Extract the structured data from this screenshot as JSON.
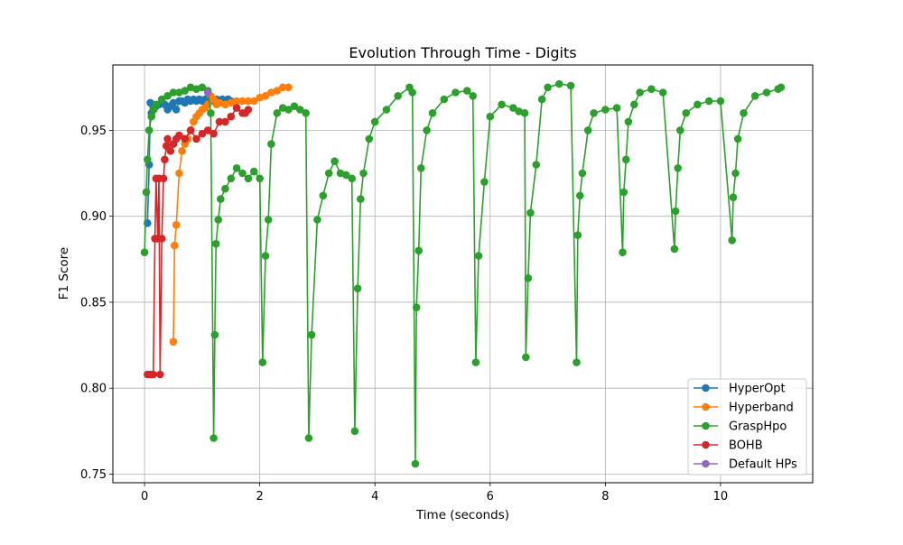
{
  "chart_data": {
    "type": "line",
    "title": "Evolution Through Time - Digits",
    "xlabel": "Time (seconds)",
    "ylabel": "F1 Score",
    "xlim": [
      -0.55,
      11.6
    ],
    "ylim": [
      0.745,
      0.988
    ],
    "xticks": [
      0,
      2,
      4,
      6,
      8,
      10
    ],
    "xtick_labels": [
      "0",
      "2",
      "4",
      "6",
      "8",
      "10"
    ],
    "yticks": [
      0.75,
      0.8,
      0.85,
      0.9,
      0.95
    ],
    "ytick_labels": [
      "0.75",
      "0.80",
      "0.85",
      "0.90",
      "0.95"
    ],
    "grid": true,
    "legend_position": "lower-right",
    "series": [
      {
        "name": "HyperOpt",
        "color": "#1f77b4",
        "x": [
          0.05,
          0.08,
          0.1,
          0.12,
          0.15,
          0.2,
          0.25,
          0.3,
          0.35,
          0.4,
          0.45,
          0.5,
          0.55,
          0.6,
          0.65,
          0.7,
          0.75,
          0.8,
          0.85,
          0.9,
          0.95,
          1.0,
          1.05,
          1.1,
          1.15,
          1.2,
          1.25,
          1.3,
          1.35,
          1.4,
          1.45,
          1.5
        ],
        "y": [
          0.896,
          0.93,
          0.966,
          0.96,
          0.962,
          0.964,
          0.965,
          0.966,
          0.965,
          0.962,
          0.964,
          0.966,
          0.962,
          0.967,
          0.967,
          0.966,
          0.968,
          0.967,
          0.968,
          0.967,
          0.968,
          0.967,
          0.968,
          0.967,
          0.968,
          0.967,
          0.968,
          0.967,
          0.968,
          0.967,
          0.968,
          0.967
        ]
      },
      {
        "name": "Hyperband",
        "color": "#ff7f0e",
        "x": [
          0.5,
          0.52,
          0.55,
          0.6,
          0.65,
          0.7,
          0.75,
          0.8,
          0.85,
          0.9,
          0.95,
          1.0,
          1.05,
          1.1,
          1.15,
          1.2,
          1.25,
          1.3,
          1.4,
          1.5,
          1.6,
          1.7,
          1.8,
          1.9,
          2.0,
          2.1,
          2.2,
          2.3,
          2.4,
          2.5
        ],
        "y": [
          0.827,
          0.883,
          0.895,
          0.925,
          0.938,
          0.942,
          0.945,
          0.95,
          0.955,
          0.958,
          0.96,
          0.962,
          0.963,
          0.965,
          0.97,
          0.968,
          0.965,
          0.966,
          0.965,
          0.966,
          0.967,
          0.967,
          0.967,
          0.967,
          0.969,
          0.97,
          0.972,
          0.973,
          0.975,
          0.975
        ]
      },
      {
        "name": "GraspHpo",
        "color": "#2ca02c",
        "x": [
          0.0,
          0.03,
          0.05,
          0.08,
          0.12,
          0.16,
          0.2,
          0.3,
          0.4,
          0.5,
          0.6,
          0.7,
          0.8,
          0.9,
          1.0,
          1.1,
          1.15,
          1.2,
          1.22,
          1.24,
          1.28,
          1.32,
          1.4,
          1.5,
          1.6,
          1.7,
          1.8,
          1.9,
          2.0,
          2.05,
          2.1,
          2.15,
          2.2,
          2.3,
          2.4,
          2.5,
          2.6,
          2.7,
          2.8,
          2.85,
          2.9,
          3.0,
          3.1,
          3.2,
          3.3,
          3.4,
          3.5,
          3.6,
          3.65,
          3.7,
          3.75,
          3.8,
          3.9,
          4.0,
          4.2,
          4.4,
          4.6,
          4.65,
          4.7,
          4.72,
          4.76,
          4.8,
          4.9,
          5.0,
          5.2,
          5.4,
          5.6,
          5.7,
          5.75,
          5.8,
          5.9,
          6.0,
          6.2,
          6.4,
          6.5,
          6.6,
          6.62,
          6.66,
          6.7,
          6.8,
          6.9,
          7.0,
          7.2,
          7.4,
          7.5,
          7.52,
          7.56,
          7.6,
          7.7,
          7.8,
          8.0,
          8.2,
          8.3,
          8.32,
          8.36,
          8.4,
          8.5,
          8.6,
          8.8,
          9.0,
          9.2,
          9.22,
          9.26,
          9.3,
          9.4,
          9.6,
          9.8,
          10.0,
          10.2,
          10.22,
          10.26,
          10.3,
          10.4,
          10.6,
          10.8,
          11.0,
          11.05
        ],
        "y": [
          0.879,
          0.914,
          0.933,
          0.95,
          0.958,
          0.962,
          0.965,
          0.968,
          0.97,
          0.972,
          0.972,
          0.973,
          0.975,
          0.974,
          0.975,
          0.973,
          0.96,
          0.771,
          0.831,
          0.884,
          0.898,
          0.91,
          0.916,
          0.922,
          0.928,
          0.925,
          0.922,
          0.926,
          0.922,
          0.815,
          0.877,
          0.898,
          0.942,
          0.96,
          0.963,
          0.962,
          0.964,
          0.962,
          0.96,
          0.771,
          0.831,
          0.898,
          0.912,
          0.925,
          0.932,
          0.925,
          0.924,
          0.922,
          0.775,
          0.858,
          0.91,
          0.925,
          0.945,
          0.955,
          0.962,
          0.97,
          0.975,
          0.972,
          0.756,
          0.847,
          0.88,
          0.928,
          0.95,
          0.96,
          0.968,
          0.972,
          0.973,
          0.97,
          0.815,
          0.877,
          0.92,
          0.958,
          0.965,
          0.963,
          0.961,
          0.96,
          0.818,
          0.864,
          0.902,
          0.93,
          0.968,
          0.975,
          0.977,
          0.976,
          0.815,
          0.889,
          0.912,
          0.925,
          0.95,
          0.96,
          0.962,
          0.963,
          0.879,
          0.914,
          0.933,
          0.955,
          0.965,
          0.972,
          0.974,
          0.972,
          0.881,
          0.903,
          0.928,
          0.95,
          0.96,
          0.965,
          0.967,
          0.967,
          0.886,
          0.911,
          0.925,
          0.945,
          0.96,
          0.97,
          0.972,
          0.974,
          0.975
        ]
      },
      {
        "name": "BOHB",
        "color": "#d62728",
        "x": [
          0.05,
          0.1,
          0.15,
          0.18,
          0.2,
          0.23,
          0.25,
          0.27,
          0.3,
          0.33,
          0.35,
          0.38,
          0.4,
          0.45,
          0.5,
          0.55,
          0.6,
          0.7,
          0.8,
          0.9,
          1.0,
          1.1,
          1.2,
          1.3,
          1.4,
          1.5,
          1.6,
          1.7,
          1.75,
          1.8
        ],
        "y": [
          0.808,
          0.808,
          0.808,
          0.887,
          0.922,
          0.887,
          0.922,
          0.808,
          0.887,
          0.922,
          0.933,
          0.941,
          0.945,
          0.938,
          0.942,
          0.945,
          0.947,
          0.945,
          0.95,
          0.945,
          0.948,
          0.95,
          0.948,
          0.955,
          0.955,
          0.958,
          0.963,
          0.96,
          0.96,
          0.962
        ]
      },
      {
        "name": "Default HPs",
        "color": "#9467bd",
        "x": [
          1.1
        ],
        "y": [
          0.972
        ]
      }
    ]
  }
}
